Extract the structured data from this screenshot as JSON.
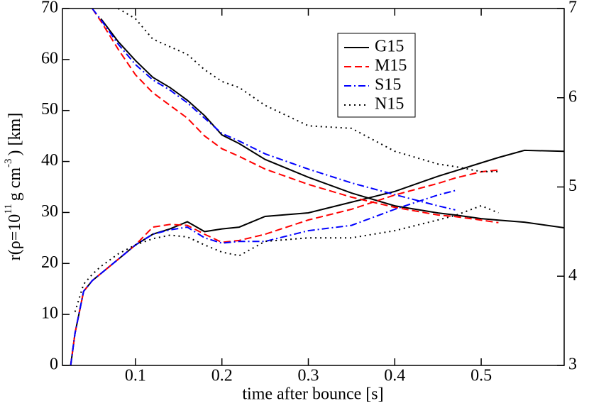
{
  "chart_data": {
    "type": "line",
    "xlabel": "time after bounce [s]",
    "ylabel_parts": [
      {
        "text": "r(ρ=10"
      },
      {
        "text": "11",
        "superscript": true
      },
      {
        "text": "g cm"
      },
      {
        "text": "-3",
        "superscript": true
      },
      {
        "text": ") [km]"
      }
    ],
    "x": [
      0.025,
      0.03,
      0.04,
      0.05,
      0.06,
      0.08,
      0.1,
      0.12,
      0.14,
      0.16,
      0.18,
      0.2,
      0.22,
      0.25,
      0.3,
      0.35,
      0.4,
      0.45,
      0.47,
      0.5,
      0.52,
      0.55,
      0.596
    ],
    "xlim": [
      0.0155,
      0.596
    ],
    "xticks": [
      0.1,
      0.2,
      0.3,
      0.4,
      0.5
    ],
    "ylim": [
      0,
      70
    ],
    "yticks": [
      0,
      10,
      20,
      30,
      40,
      50,
      60,
      70
    ],
    "y2lim": [
      3,
      7
    ],
    "y2ticks": [
      3,
      4,
      5,
      6,
      7
    ],
    "legend": "upper-center",
    "series": [
      {
        "name": "G15",
        "color": "#000000",
        "linestyle": "solid",
        "values": [
          null,
          null,
          null,
          null,
          68,
          63.5,
          59.8,
          56.5,
          54.5,
          52,
          49,
          45.2,
          43.5,
          40.4,
          36.9,
          33.8,
          31.3,
          29.9,
          29.5,
          28.8,
          28.5,
          28.1,
          27.0
        ],
        "values_y2": [
          3.0,
          3.36,
          3.83,
          3.95,
          4.03,
          4.19,
          4.35,
          4.47,
          4.53,
          4.61,
          4.5,
          4.53,
          4.55,
          4.67,
          4.71,
          4.83,
          4.95,
          5.12,
          5.18,
          5.27,
          5.33,
          5.41,
          5.4
        ]
      },
      {
        "name": "M15",
        "color": "#ff0000",
        "linestyle": "dashed",
        "values": [
          null,
          null,
          null,
          70,
          67.5,
          62,
          57,
          53.5,
          51,
          48.5,
          45,
          42.5,
          41,
          38.5,
          35.5,
          33,
          31,
          29.5,
          29.2,
          28.5,
          28,
          null,
          null
        ],
        "values_y2": [
          3.0,
          3.36,
          3.83,
          3.95,
          4.03,
          4.19,
          4.35,
          4.55,
          4.58,
          4.57,
          4.47,
          4.38,
          4.4,
          4.47,
          4.63,
          4.75,
          4.91,
          5.04,
          5.1,
          5.17,
          5.19,
          null,
          null
        ]
      },
      {
        "name": "S15",
        "color": "#0000ff",
        "linestyle": "dashdot",
        "values": [
          null,
          null,
          null,
          70,
          67.8,
          63,
          59,
          56,
          54,
          51.5,
          48.5,
          45.5,
          44,
          41.5,
          38.5,
          35.8,
          33.5,
          31.3,
          30.5,
          null,
          null,
          null,
          null
        ],
        "values_y2": [
          3.0,
          3.36,
          3.83,
          3.95,
          4.03,
          4.19,
          4.35,
          4.47,
          4.52,
          4.55,
          4.43,
          4.37,
          4.39,
          4.39,
          4.51,
          4.57,
          4.75,
          4.91,
          4.96,
          null,
          null,
          null,
          null
        ]
      },
      {
        "name": "N15",
        "color": "#000000",
        "linestyle": "dotted",
        "values": [
          null,
          null,
          null,
          null,
          null,
          70,
          68,
          64,
          62.5,
          61,
          58,
          55.7,
          54.5,
          51,
          47,
          46.5,
          42,
          39.5,
          39,
          38,
          38,
          null,
          null
        ],
        "values_y2": [
          null,
          3.6,
          3.91,
          4.02,
          4.11,
          4.25,
          4.35,
          4.42,
          4.46,
          4.44,
          4.35,
          4.27,
          4.23,
          4.39,
          4.43,
          4.43,
          4.51,
          4.63,
          4.68,
          4.79,
          4.71,
          null,
          null
        ]
      }
    ]
  }
}
